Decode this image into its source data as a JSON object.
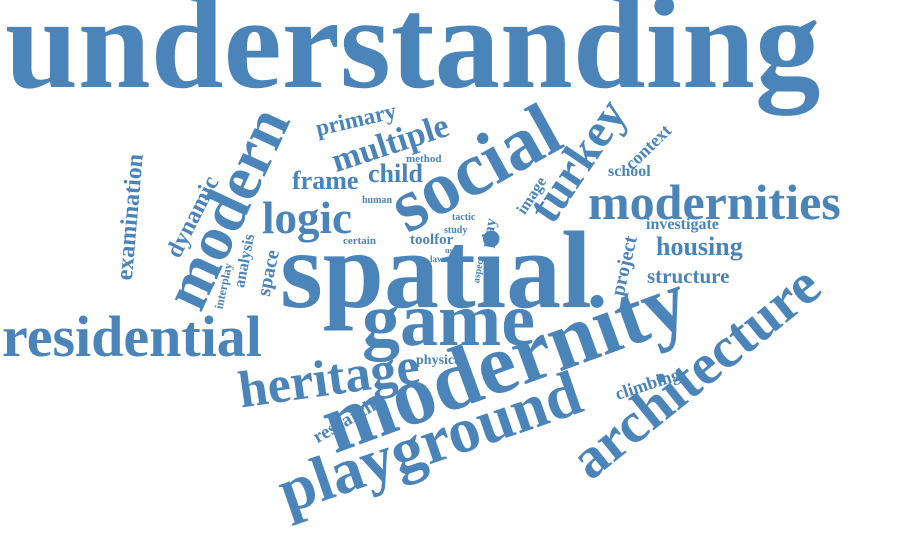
{
  "color": "#4a84b9",
  "words": [
    {
      "key": "understanding",
      "text": "understanding"
    },
    {
      "key": "spatial",
      "text": "spatial"
    },
    {
      "key": "modernity",
      "text": "modernity"
    },
    {
      "key": "playground",
      "text": "playground"
    },
    {
      "key": "architecture",
      "text": "architecture"
    },
    {
      "key": "social",
      "text": "social"
    },
    {
      "key": "game",
      "text": "game"
    },
    {
      "key": "residential",
      "text": "residential"
    },
    {
      "key": "modernities",
      "text": "modernities"
    },
    {
      "key": "modern",
      "text": "modern"
    },
    {
      "key": "heritage",
      "text": "heritage"
    },
    {
      "key": "turkey",
      "text": "turkey"
    },
    {
      "key": "logic",
      "text": "logic"
    },
    {
      "key": "multiple",
      "text": "multiple"
    },
    {
      "key": "frame",
      "text": "frame"
    },
    {
      "key": "child",
      "text": "child"
    },
    {
      "key": "primary",
      "text": "primary"
    },
    {
      "key": "examination",
      "text": "examination"
    },
    {
      "key": "dynamic",
      "text": "dynamic"
    },
    {
      "key": "analysis",
      "text": "analysis"
    },
    {
      "key": "space",
      "text": "space"
    },
    {
      "key": "interplay",
      "text": "interplay"
    },
    {
      "key": "housing",
      "text": "housing"
    },
    {
      "key": "structure",
      "text": "structure"
    },
    {
      "key": "investigate",
      "text": "investigate"
    },
    {
      "key": "school",
      "text": "school"
    },
    {
      "key": "context",
      "text": "context"
    },
    {
      "key": "project",
      "text": "project"
    },
    {
      "key": "climbing",
      "text": "climbing"
    },
    {
      "key": "research",
      "text": "research"
    },
    {
      "key": "physical",
      "text": "physical"
    },
    {
      "key": "toolfor",
      "text": "toolfor"
    },
    {
      "key": "certain",
      "text": "certain"
    },
    {
      "key": "human",
      "text": "human"
    },
    {
      "key": "method",
      "text": "method"
    },
    {
      "key": "image",
      "text": "image"
    },
    {
      "key": "play",
      "text": "play"
    },
    {
      "key": "tactic",
      "text": "tactic"
    },
    {
      "key": "study",
      "text": "study"
    },
    {
      "key": "aspect",
      "text": "aspect"
    },
    {
      "key": "law",
      "text": "law"
    },
    {
      "key": "us",
      "text": "us"
    }
  ]
}
